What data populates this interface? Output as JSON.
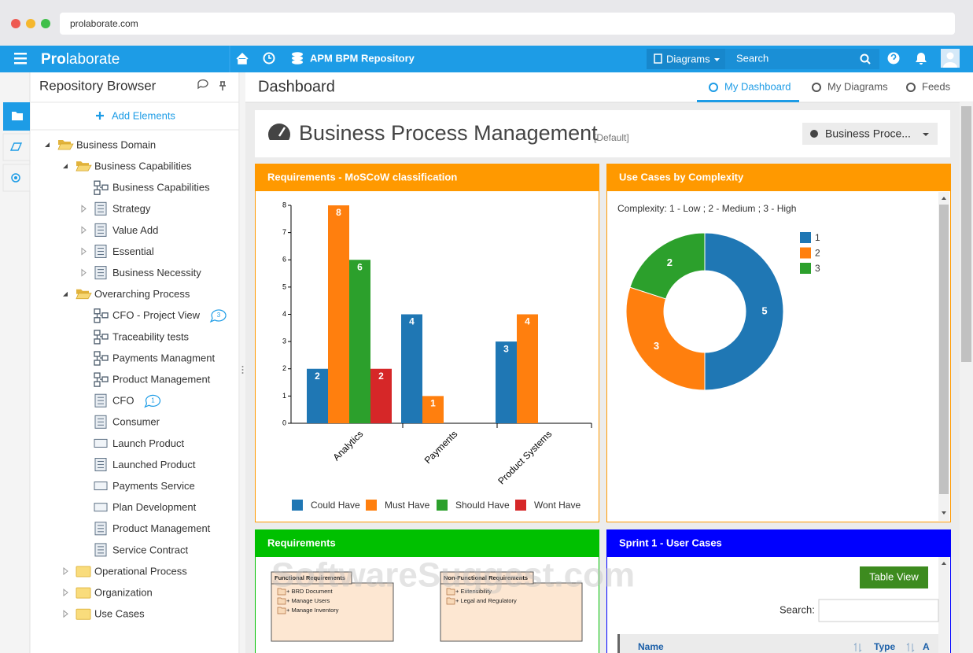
{
  "browser": {
    "url": "prolaborate.com"
  },
  "navbar": {
    "brand_bold": "Pro",
    "brand_rest": "laborate",
    "repository": "APM BPM Repository",
    "diagrams": "Diagrams",
    "search": "Search"
  },
  "sidebar": {
    "title": "Repository Browser",
    "add_elements": "Add Elements",
    "tree": [
      {
        "label": "Business Domain",
        "level": 0,
        "icon": "folder-open",
        "expander": "open"
      },
      {
        "label": "Business Capabilities",
        "level": 1,
        "icon": "folder-open",
        "expander": "open"
      },
      {
        "label": "Business Capabilities",
        "level": 2,
        "icon": "diagram"
      },
      {
        "label": "Strategy",
        "level": 2,
        "icon": "list",
        "expander": "closed"
      },
      {
        "label": "Value Add",
        "level": 2,
        "icon": "list",
        "expander": "closed"
      },
      {
        "label": "Essential",
        "level": 2,
        "icon": "list",
        "expander": "closed"
      },
      {
        "label": "Business Necessity",
        "level": 2,
        "icon": "list",
        "expander": "closed"
      },
      {
        "label": "Overarching Process",
        "level": 1,
        "icon": "folder-open",
        "expander": "open"
      },
      {
        "label": "CFO - Project View",
        "level": 2,
        "icon": "diagram",
        "badge": "3"
      },
      {
        "label": "Traceability tests",
        "level": 2,
        "icon": "diagram"
      },
      {
        "label": "Payments Managment",
        "level": 2,
        "icon": "diagram"
      },
      {
        "label": "Product Management",
        "level": 2,
        "icon": "diagram"
      },
      {
        "label": "CFO",
        "level": 2,
        "icon": "list",
        "badge": "1"
      },
      {
        "label": "Consumer",
        "level": 2,
        "icon": "list"
      },
      {
        "label": "Launch Product",
        "level": 2,
        "icon": "rect"
      },
      {
        "label": "Launched Product",
        "level": 2,
        "icon": "list"
      },
      {
        "label": "Payments Service",
        "level": 2,
        "icon": "rect"
      },
      {
        "label": "Plan Development",
        "level": 2,
        "icon": "rect"
      },
      {
        "label": "Product Management",
        "level": 2,
        "icon": "list"
      },
      {
        "label": "Service Contract",
        "level": 2,
        "icon": "list"
      },
      {
        "label": "Operational Process",
        "level": 1,
        "icon": "folder",
        "expander": "closed"
      },
      {
        "label": "Organization",
        "level": 1,
        "icon": "folder",
        "expander": "closed"
      },
      {
        "label": "Use Cases",
        "level": 1,
        "icon": "folder",
        "expander": "closed"
      }
    ]
  },
  "dashboard": {
    "title": "Dashboard",
    "tabs": [
      {
        "label": "My Dashboard",
        "active": true
      },
      {
        "label": "My Diagrams"
      },
      {
        "label": "Feeds"
      }
    ]
  },
  "header": {
    "title": "Business Process Management",
    "tag": "[Default]",
    "dropdown": "Business Proce..."
  },
  "requirements_widget": {
    "title": "Requirements",
    "header_color": "#00c000",
    "boxes": [
      {
        "title": "Functional Requirements",
        "items": [
          "+ BRD Document",
          "+ Manage Users",
          "+ Manage Inventory"
        ]
      },
      {
        "title": "Non-Functional Requirements",
        "items": [
          "+ Extensibility",
          "+ Legal and Regulatory"
        ]
      }
    ]
  },
  "sprint_widget": {
    "title": "Sprint 1 - User Cases",
    "header_color": "#0000ff",
    "button": "Table View",
    "search_label": "Search:",
    "columns": [
      "Name",
      "Type",
      "A"
    ]
  },
  "watermark": "SoftwareSuggest.com",
  "chart_data": [
    {
      "type": "bar",
      "title": "Requirements - MoSCoW classification",
      "header_color": "#ff9900",
      "categories": [
        "Analytics",
        "Payments",
        "Product Systems"
      ],
      "series": [
        {
          "name": "Could Have",
          "color": "#1f77b4",
          "values": [
            2,
            4,
            3
          ]
        },
        {
          "name": "Must Have",
          "color": "#ff7f0e",
          "values": [
            8,
            1,
            4
          ]
        },
        {
          "name": "Should Have",
          "color": "#2ca02c",
          "values": [
            6,
            null,
            null
          ]
        },
        {
          "name": "Wont Have",
          "color": "#d62728",
          "values": [
            2,
            null,
            null
          ]
        }
      ],
      "ylim": [
        0,
        8
      ],
      "yticks": [
        0,
        1,
        2,
        3,
        4,
        5,
        6,
        7,
        8
      ]
    },
    {
      "type": "pie",
      "title": "Use Cases by Complexity",
      "header_color": "#ff9900",
      "donut": true,
      "subtitle": "Complexity: 1 - Low ; 2 - Medium ; 3 - High",
      "categories": [
        "1",
        "2",
        "3"
      ],
      "values": [
        5,
        3,
        2
      ],
      "colors": [
        "#1f77b4",
        "#ff7f0e",
        "#2ca02c"
      ]
    }
  ]
}
